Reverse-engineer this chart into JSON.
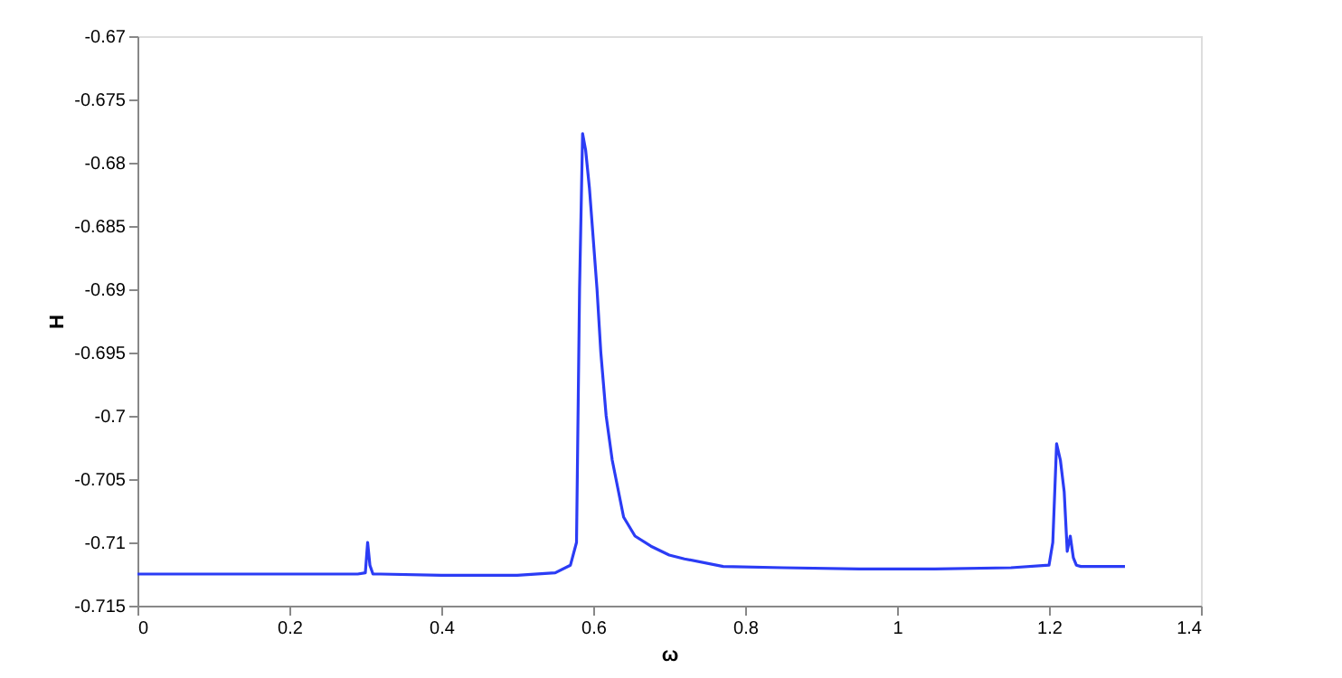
{
  "chart_data": {
    "type": "line",
    "xlabel": "ω",
    "ylabel": "H",
    "x": [
      0,
      0.1,
      0.2,
      0.29,
      0.3,
      0.303,
      0.306,
      0.31,
      0.32,
      0.4,
      0.5,
      0.55,
      0.57,
      0.578,
      0.582,
      0.586,
      0.59,
      0.595,
      0.605,
      0.61,
      0.617,
      0.625,
      0.64,
      0.655,
      0.676,
      0.7,
      0.72,
      0.771,
      0.85,
      0.95,
      1.05,
      1.15,
      1.2,
      1.205,
      1.21,
      1.215,
      1.22,
      1.224,
      1.228,
      1.232,
      1.236,
      1.242,
      1.26,
      1.3
    ],
    "series": [
      {
        "color": "#2b3cf5",
        "values": [
          -0.7125,
          -0.7125,
          -0.7125,
          -0.7125,
          -0.7124,
          -0.71,
          -0.7118,
          -0.7125,
          -0.7125,
          -0.7126,
          -0.7126,
          -0.7124,
          -0.7118,
          -0.71,
          -0.69,
          -0.6777,
          -0.679,
          -0.682,
          -0.69,
          -0.695,
          -0.7,
          -0.7035,
          -0.708,
          -0.7095,
          -0.7103,
          -0.711,
          -0.7113,
          -0.7119,
          -0.712,
          -0.7121,
          -0.7121,
          -0.712,
          -0.7118,
          -0.71,
          -0.7022,
          -0.7035,
          -0.706,
          -0.7107,
          -0.7095,
          -0.7112,
          -0.7118,
          -0.7119,
          -0.7119,
          -0.7119
        ]
      }
    ],
    "xlim": [
      0,
      1.4
    ],
    "xticks": [
      0,
      0.2,
      0.4,
      0.6,
      0.8,
      1,
      1.2,
      1.4
    ],
    "ylim": [
      -0.715,
      -0.67
    ],
    "yticks": [
      -0.715,
      -0.71,
      -0.705,
      -0.7,
      -0.695,
      -0.69,
      -0.685,
      -0.68,
      -0.675,
      -0.67
    ],
    "grid": false,
    "marker": "none",
    "line_style": "solid"
  }
}
